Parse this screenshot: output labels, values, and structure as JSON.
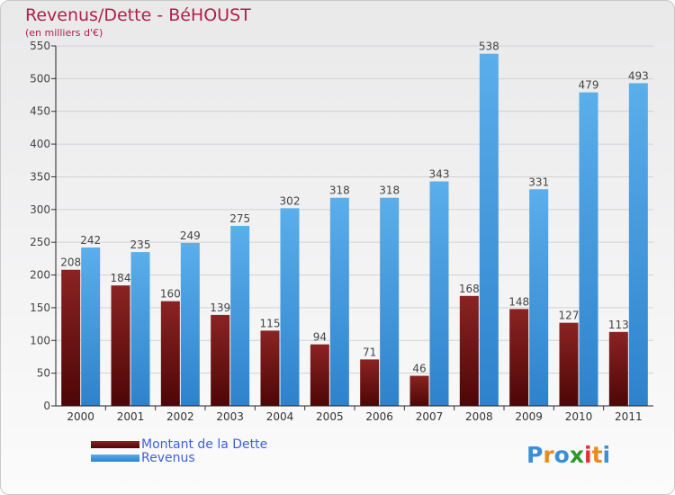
{
  "chart_data": {
    "type": "bar",
    "title": "Revenus/Dette - BéHOUST",
    "subtitle": "(en milliers d'€)",
    "categories": [
      "2000",
      "2001",
      "2002",
      "2003",
      "2004",
      "2005",
      "2006",
      "2007",
      "2008",
      "2009",
      "2010",
      "2011"
    ],
    "series": [
      {
        "name": "Montant de la Dette",
        "color": "#7a1515",
        "values": [
          208,
          184,
          160,
          139,
          115,
          94,
          71,
          46,
          168,
          148,
          127,
          113
        ]
      },
      {
        "name": "Revenus",
        "color": "#4aa3e6",
        "values": [
          242,
          235,
          249,
          275,
          302,
          318,
          318,
          343,
          538,
          331,
          479,
          493
        ]
      }
    ],
    "ylim": [
      0,
      550
    ],
    "yticks": [
      0,
      50,
      100,
      150,
      200,
      250,
      300,
      350,
      400,
      450,
      500,
      550
    ],
    "grid": true,
    "legend_position": "bottom-left"
  },
  "brand": {
    "letters": [
      "P",
      "r",
      "o",
      "x",
      "i",
      "t",
      "i"
    ],
    "colors": [
      "#3a8fd8",
      "#e88b1f",
      "#3a8fd8",
      "#2a9a2a",
      "#e0342b",
      "#e88b1f",
      "#3a8fd8"
    ]
  }
}
